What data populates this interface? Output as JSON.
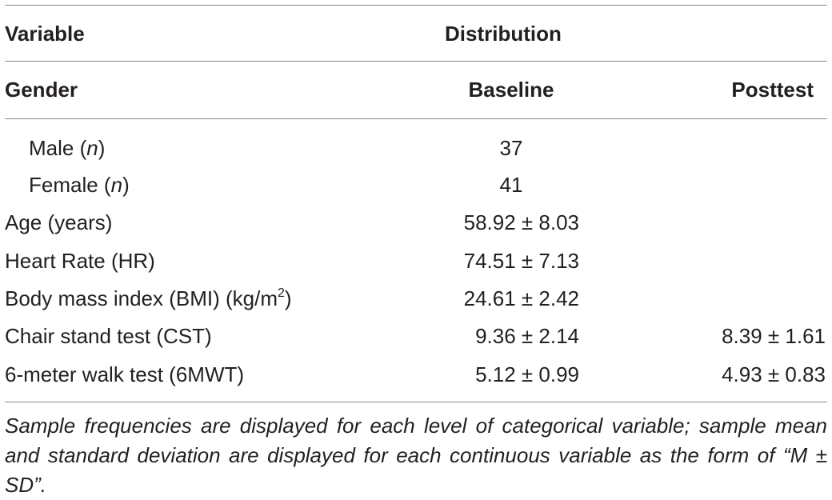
{
  "table": {
    "header1": {
      "variable": "Variable",
      "distribution": "Distribution"
    },
    "header2": {
      "gender": "Gender",
      "baseline": "Baseline",
      "posttest": "Posttest"
    },
    "rows": [
      {
        "label": "Male",
        "label_suffix": "n",
        "baseline": "37",
        "posttest": ""
      },
      {
        "label": "Female",
        "label_suffix": "n",
        "baseline": "41",
        "posttest": ""
      },
      {
        "label": "Age (years)",
        "baseline": "58.92 ± 8.03",
        "posttest": ""
      },
      {
        "label": "Heart Rate (HR)",
        "baseline": "74.51 ± 7.13",
        "posttest": ""
      },
      {
        "label": "Body mass index (BMI) (kg/m",
        "label_sup": "2",
        "label_end": ")",
        "baseline": "24.61 ± 2.42",
        "posttest": ""
      },
      {
        "label": "Chair stand test (CST)",
        "baseline": "9.36 ± 2.14",
        "posttest": "8.39 ± 1.61"
      },
      {
        "label": "6-meter walk test (6MWT)",
        "baseline": "5.12 ± 0.99",
        "posttest": "4.93 ± 0.83"
      }
    ],
    "footnote": "Sample frequencies are displayed for each level of categorical variable; sample mean and standard deviation are displayed for each continuous variable as the form of “M ± SD”."
  }
}
